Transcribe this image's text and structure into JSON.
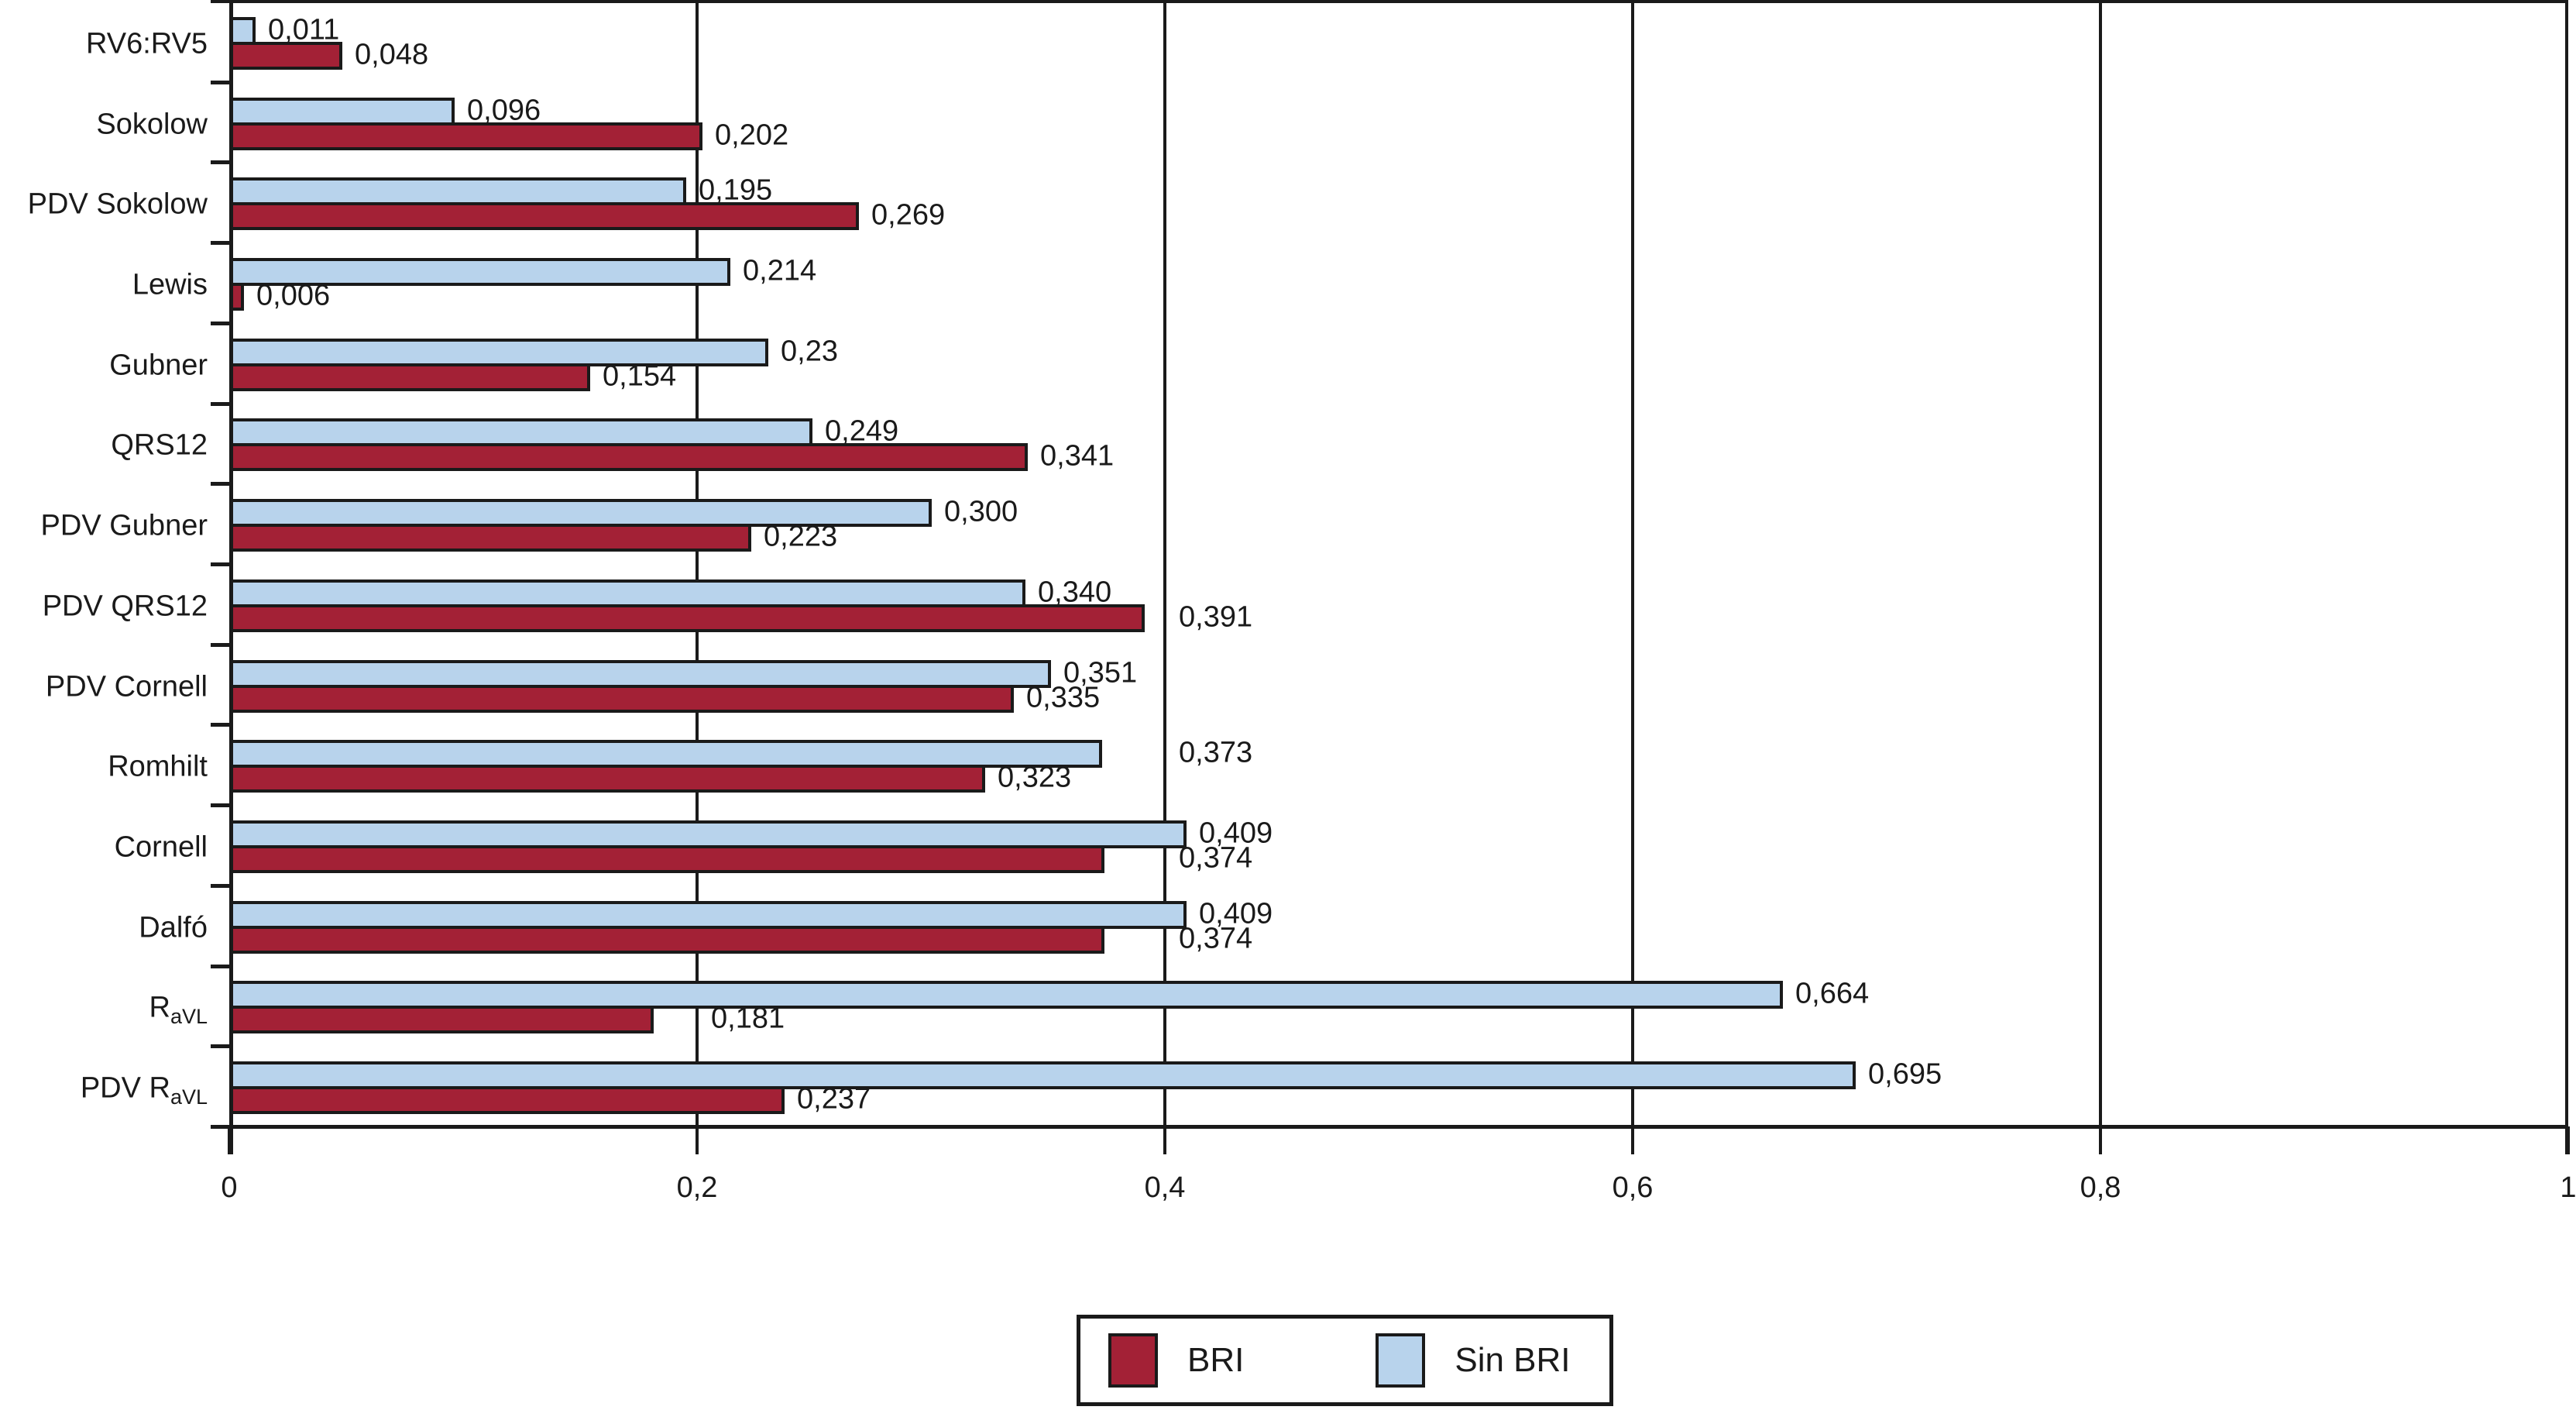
{
  "chart_data": {
    "type": "bar",
    "orientation": "horizontal",
    "xlim": [
      0,
      1
    ],
    "x_ticks": [
      {
        "value": 0,
        "label": "0"
      },
      {
        "value": 0.2,
        "label": "0,2"
      },
      {
        "value": 0.4,
        "label": "0,4"
      },
      {
        "value": 0.6,
        "label": "0,6"
      },
      {
        "value": 0.8,
        "label": "0,8"
      },
      {
        "value": 1,
        "label": "1"
      }
    ],
    "gridline_values": [
      0.2,
      0.4,
      0.6,
      0.8
    ],
    "categories": [
      {
        "text": "RV6:RV5"
      },
      {
        "text": "Sokolow"
      },
      {
        "text": "PDV Sokolow"
      },
      {
        "text": "Lewis"
      },
      {
        "text": "Gubner"
      },
      {
        "text": "QRS12"
      },
      {
        "text": "PDV Gubner"
      },
      {
        "text": "PDV QRS12"
      },
      {
        "text": "PDV Cornell"
      },
      {
        "text": "Romhilt"
      },
      {
        "text": "Cornell"
      },
      {
        "text": "Dalfó"
      },
      {
        "text": "R",
        "sub": "aVL"
      },
      {
        "text": "PDV R",
        "sub": "aVL"
      }
    ],
    "series": [
      {
        "name": "BRI",
        "position": "bottom",
        "color": "#a32136",
        "values": [
          0.048,
          0.202,
          0.269,
          0.006,
          0.154,
          0.341,
          0.223,
          0.391,
          0.335,
          0.323,
          0.374,
          0.374,
          0.181,
          0.237
        ],
        "labels": [
          "0,048",
          "0,202",
          "0,269",
          "0,006",
          "0,154",
          "0,341",
          "0,223",
          "0,391",
          "0,335",
          "0,323",
          "0,374",
          "0,374",
          "0,181",
          "0,237"
        ]
      },
      {
        "name": "Sin BRI",
        "position": "top",
        "color": "#b8d3ec",
        "values": [
          0.011,
          0.096,
          0.195,
          0.214,
          0.23,
          0.249,
          0.3,
          0.34,
          0.351,
          0.373,
          0.409,
          0.409,
          0.664,
          0.695
        ],
        "labels": [
          "0,011",
          "0,096",
          "0,195",
          "0,214",
          "0,23",
          "0,249",
          "0,300",
          "0,340",
          "0,351",
          "0,373",
          "0,409",
          "0,409",
          "0,664",
          "0,695"
        ]
      }
    ],
    "legend": {
      "position": "bottom-center",
      "entries": [
        "BRI",
        "Sin BRI"
      ]
    }
  },
  "colors": {
    "ink": "#1a1a1a",
    "background": "#ffffff",
    "bri": "#a32136",
    "sin_bri": "#b8d3ec"
  }
}
